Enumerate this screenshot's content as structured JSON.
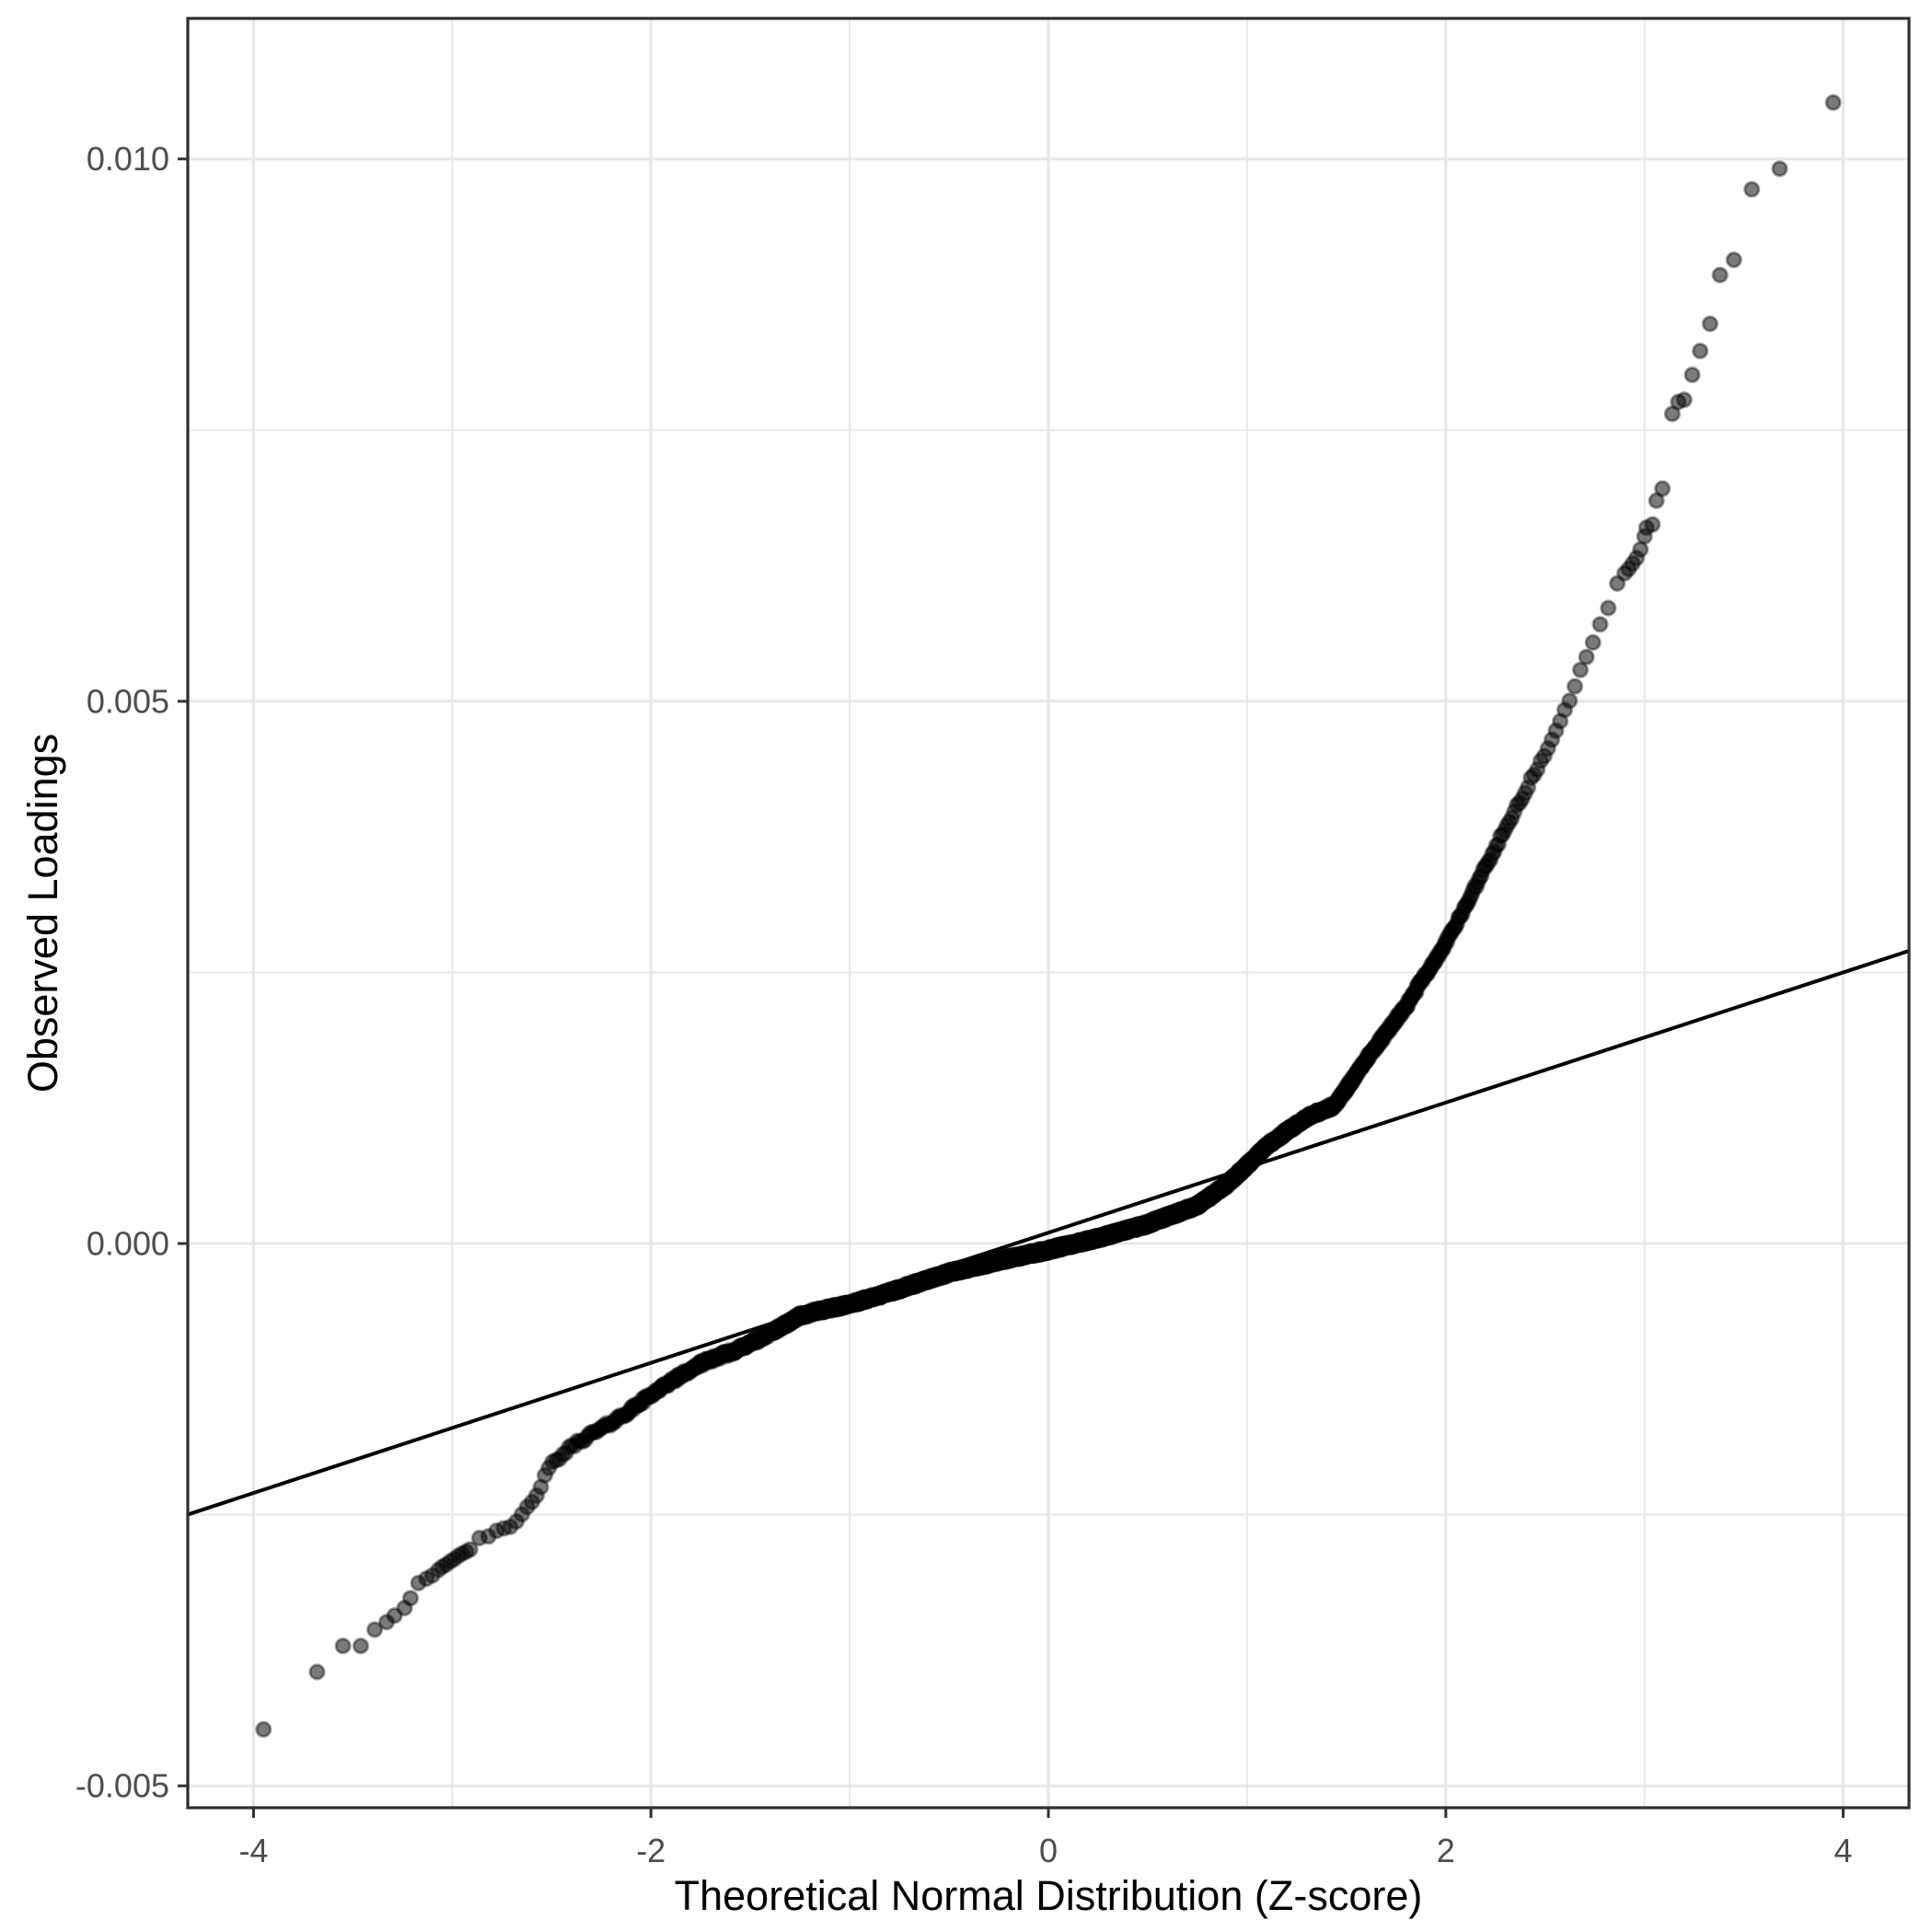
{
  "chart_data": {
    "type": "scatter",
    "subtype": "qq-plot",
    "title": "",
    "xlabel": "Theoretical Normal Distribution (Z-score)",
    "ylabel": "Observed Loadings",
    "xlim": [
      -4.331,
      4.331
    ],
    "ylim": [
      -0.005202,
      0.011296
    ],
    "grid": "on",
    "legend": "none",
    "x_ticks": {
      "values": [
        -4,
        -2,
        0,
        2,
        4
      ],
      "labels": [
        "-4",
        "-2",
        "0",
        "2",
        "4"
      ]
    },
    "y_ticks": {
      "values": [
        -0.005,
        0.0,
        0.005,
        0.01
      ],
      "labels": [
        "-0.005",
        "0.000",
        "0.005",
        "0.010"
      ]
    },
    "x_minor": [
      -3,
      -1,
      1,
      3
    ],
    "y_minor": [
      -0.0025,
      0.0025,
      0.0075
    ],
    "reference_line": {
      "slope": 0.0006,
      "intercept": 0.0001
    },
    "points": {
      "n": 3100,
      "clip_z": 2.9,
      "radius": 7.6,
      "noise_amp": 2.2e-05,
      "wobble_amp": 2.6e-05,
      "color": "#000000",
      "alpha": 0.52
    },
    "curve_knots": [
      [
        -3.95,
        -0.00448
      ],
      [
        -3.68,
        -0.00395
      ],
      [
        -3.55,
        -0.00371
      ],
      [
        -3.46,
        -0.00371
      ],
      [
        -3.39,
        -0.00356
      ],
      [
        -3.33,
        -0.00349
      ],
      [
        -3.29,
        -0.00343
      ],
      [
        -3.24,
        -0.00336
      ],
      [
        -3.21,
        -0.00327
      ],
      [
        -3.17,
        -0.00313
      ],
      [
        -3.13,
        -0.00309
      ],
      [
        -3.08,
        -0.00302
      ],
      [
        -3.02,
        -0.00294
      ],
      [
        -2.96,
        -0.00285
      ],
      [
        -2.85,
        -0.00272
      ],
      [
        -2.71,
        -0.00262
      ],
      [
        -2.6,
        -0.00237
      ],
      [
        -2.5,
        -0.00203
      ],
      [
        -2.38,
        -0.00186
      ],
      [
        -2.25,
        -0.00172
      ],
      [
        -2.12,
        -0.00155
      ],
      [
        -2.0,
        -0.00138
      ],
      [
        -1.87,
        -0.00124
      ],
      [
        -1.74,
        -0.00111
      ],
      [
        -1.57,
        -0.00098
      ],
      [
        -1.4,
        -0.00082
      ],
      [
        -1.25,
        -0.00067
      ],
      [
        -1.12,
        -0.00061
      ],
      [
        -1.0,
        -0.00056
      ],
      [
        -0.75,
        -0.00042
      ],
      [
        -0.5,
        -0.00027
      ],
      [
        -0.25,
        -0.00016
      ],
      [
        0.0,
        -6e-05
      ],
      [
        0.25,
        5e-05
      ],
      [
        0.5,
        0.00018
      ],
      [
        0.75,
        0.00035
      ],
      [
        0.9,
        0.00055
      ],
      [
        1.1,
        0.0009
      ],
      [
        1.3,
        0.00116
      ],
      [
        1.44,
        0.00128
      ],
      [
        1.6,
        0.0017
      ],
      [
        1.8,
        0.00218
      ],
      [
        2.0,
        0.00278
      ],
      [
        2.2,
        0.00348
      ],
      [
        2.37,
        0.00405
      ],
      [
        2.55,
        0.0047
      ],
      [
        2.7,
        0.0054
      ],
      [
        2.8,
        0.0058
      ],
      [
        2.89,
        0.00617
      ],
      [
        2.95,
        0.0063
      ],
      [
        3.01,
        0.00658
      ],
      [
        3.06,
        0.00683
      ],
      [
        3.09,
        0.00696
      ],
      [
        3.14,
        0.00765
      ],
      [
        3.2,
        0.00778
      ],
      [
        3.28,
        0.00822
      ],
      [
        3.33,
        0.00848
      ],
      [
        3.38,
        0.00892
      ],
      [
        3.45,
        0.00907
      ],
      [
        3.54,
        0.00972
      ],
      [
        3.68,
        0.00991
      ],
      [
        3.95,
        0.01052
      ]
    ],
    "tail_points": [
      [
        -3.95,
        -0.00448
      ],
      [
        -3.68,
        -0.00395
      ],
      [
        -3.55,
        -0.00371
      ],
      [
        -3.46,
        -0.00371
      ],
      [
        -3.39,
        -0.00356
      ],
      [
        -3.33,
        -0.00349
      ],
      [
        -3.29,
        -0.00343
      ],
      [
        -3.24,
        -0.00336
      ],
      [
        -3.21,
        -0.00327
      ],
      [
        -3.17,
        -0.00313
      ],
      [
        -3.13,
        -0.00309
      ],
      [
        -3.1,
        -0.00306
      ],
      [
        -3.07,
        -0.00301
      ],
      [
        -3.05,
        -0.00298
      ],
      [
        -3.03,
        -0.00296
      ],
      [
        -3.01,
        -0.00293
      ],
      [
        -2.99,
        -0.00291
      ],
      [
        -2.97,
        -0.00288
      ],
      [
        -2.95,
        -0.00286
      ],
      [
        -2.93,
        -0.00284
      ],
      [
        -2.91,
        -0.00282
      ],
      [
        2.9,
        0.00618
      ],
      [
        2.92,
        0.00622
      ],
      [
        2.94,
        0.00627
      ],
      [
        2.96,
        0.00632
      ],
      [
        2.98,
        0.0064
      ],
      [
        3.0,
        0.00652
      ],
      [
        3.01,
        0.0066
      ],
      [
        3.04,
        0.00663
      ],
      [
        3.06,
        0.00685
      ],
      [
        3.09,
        0.00696
      ],
      [
        3.14,
        0.00765
      ],
      [
        3.17,
        0.00776
      ],
      [
        3.2,
        0.00778
      ],
      [
        3.24,
        0.00801
      ],
      [
        3.28,
        0.00823
      ],
      [
        3.33,
        0.00848
      ],
      [
        3.38,
        0.00893
      ],
      [
        3.45,
        0.00907
      ],
      [
        3.54,
        0.00972
      ],
      [
        3.68,
        0.00991
      ],
      [
        3.95,
        0.01052
      ]
    ],
    "colors": {
      "background": "#ffffff",
      "panel_border": "#2e2e2e",
      "grid_major": "#e7e7e7",
      "grid_minor": "#eaeaea",
      "tick": "#333333",
      "tick_label": "#4d4d4d",
      "axis_title": "#000000",
      "point": "#000000",
      "reference_line": "#000000"
    }
  }
}
